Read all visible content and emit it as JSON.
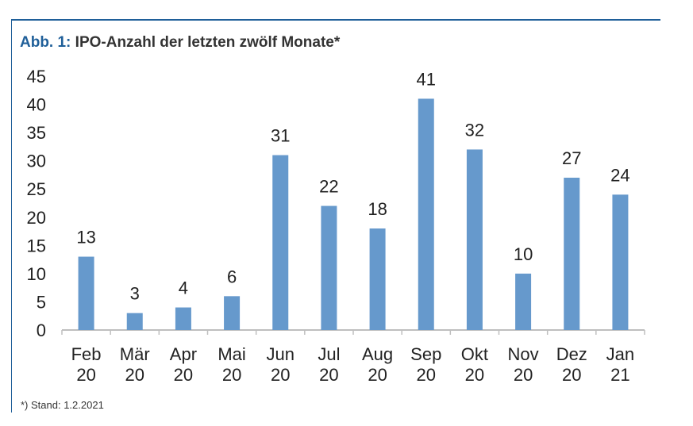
{
  "title": {
    "prefix": "Abb. 1:",
    "text": " IPO-Anzahl der letzten zwölf Monate*"
  },
  "footnote": "*) Stand: 1.2.2021",
  "colors": {
    "bar": "#6699cc",
    "frame": "#1f5f99",
    "axis": "#bfbfbf"
  },
  "chart_data": {
    "type": "bar",
    "categories": [
      [
        "Feb",
        "20"
      ],
      [
        "Mär",
        "20"
      ],
      [
        "Apr",
        "20"
      ],
      [
        "Mai",
        "20"
      ],
      [
        "Jun",
        "20"
      ],
      [
        "Jul",
        "20"
      ],
      [
        "Aug",
        "20"
      ],
      [
        "Sep",
        "20"
      ],
      [
        "Okt",
        "20"
      ],
      [
        "Nov",
        "20"
      ],
      [
        "Dez",
        "20"
      ],
      [
        "Jan",
        "21"
      ]
    ],
    "values": [
      13,
      3,
      4,
      6,
      31,
      22,
      18,
      41,
      32,
      10,
      27,
      24
    ],
    "ylim": [
      0,
      45
    ],
    "yticks": [
      0,
      5,
      10,
      15,
      20,
      25,
      30,
      35,
      40,
      45
    ],
    "data_labels": true,
    "grid": false,
    "xlabel": "",
    "ylabel": ""
  }
}
